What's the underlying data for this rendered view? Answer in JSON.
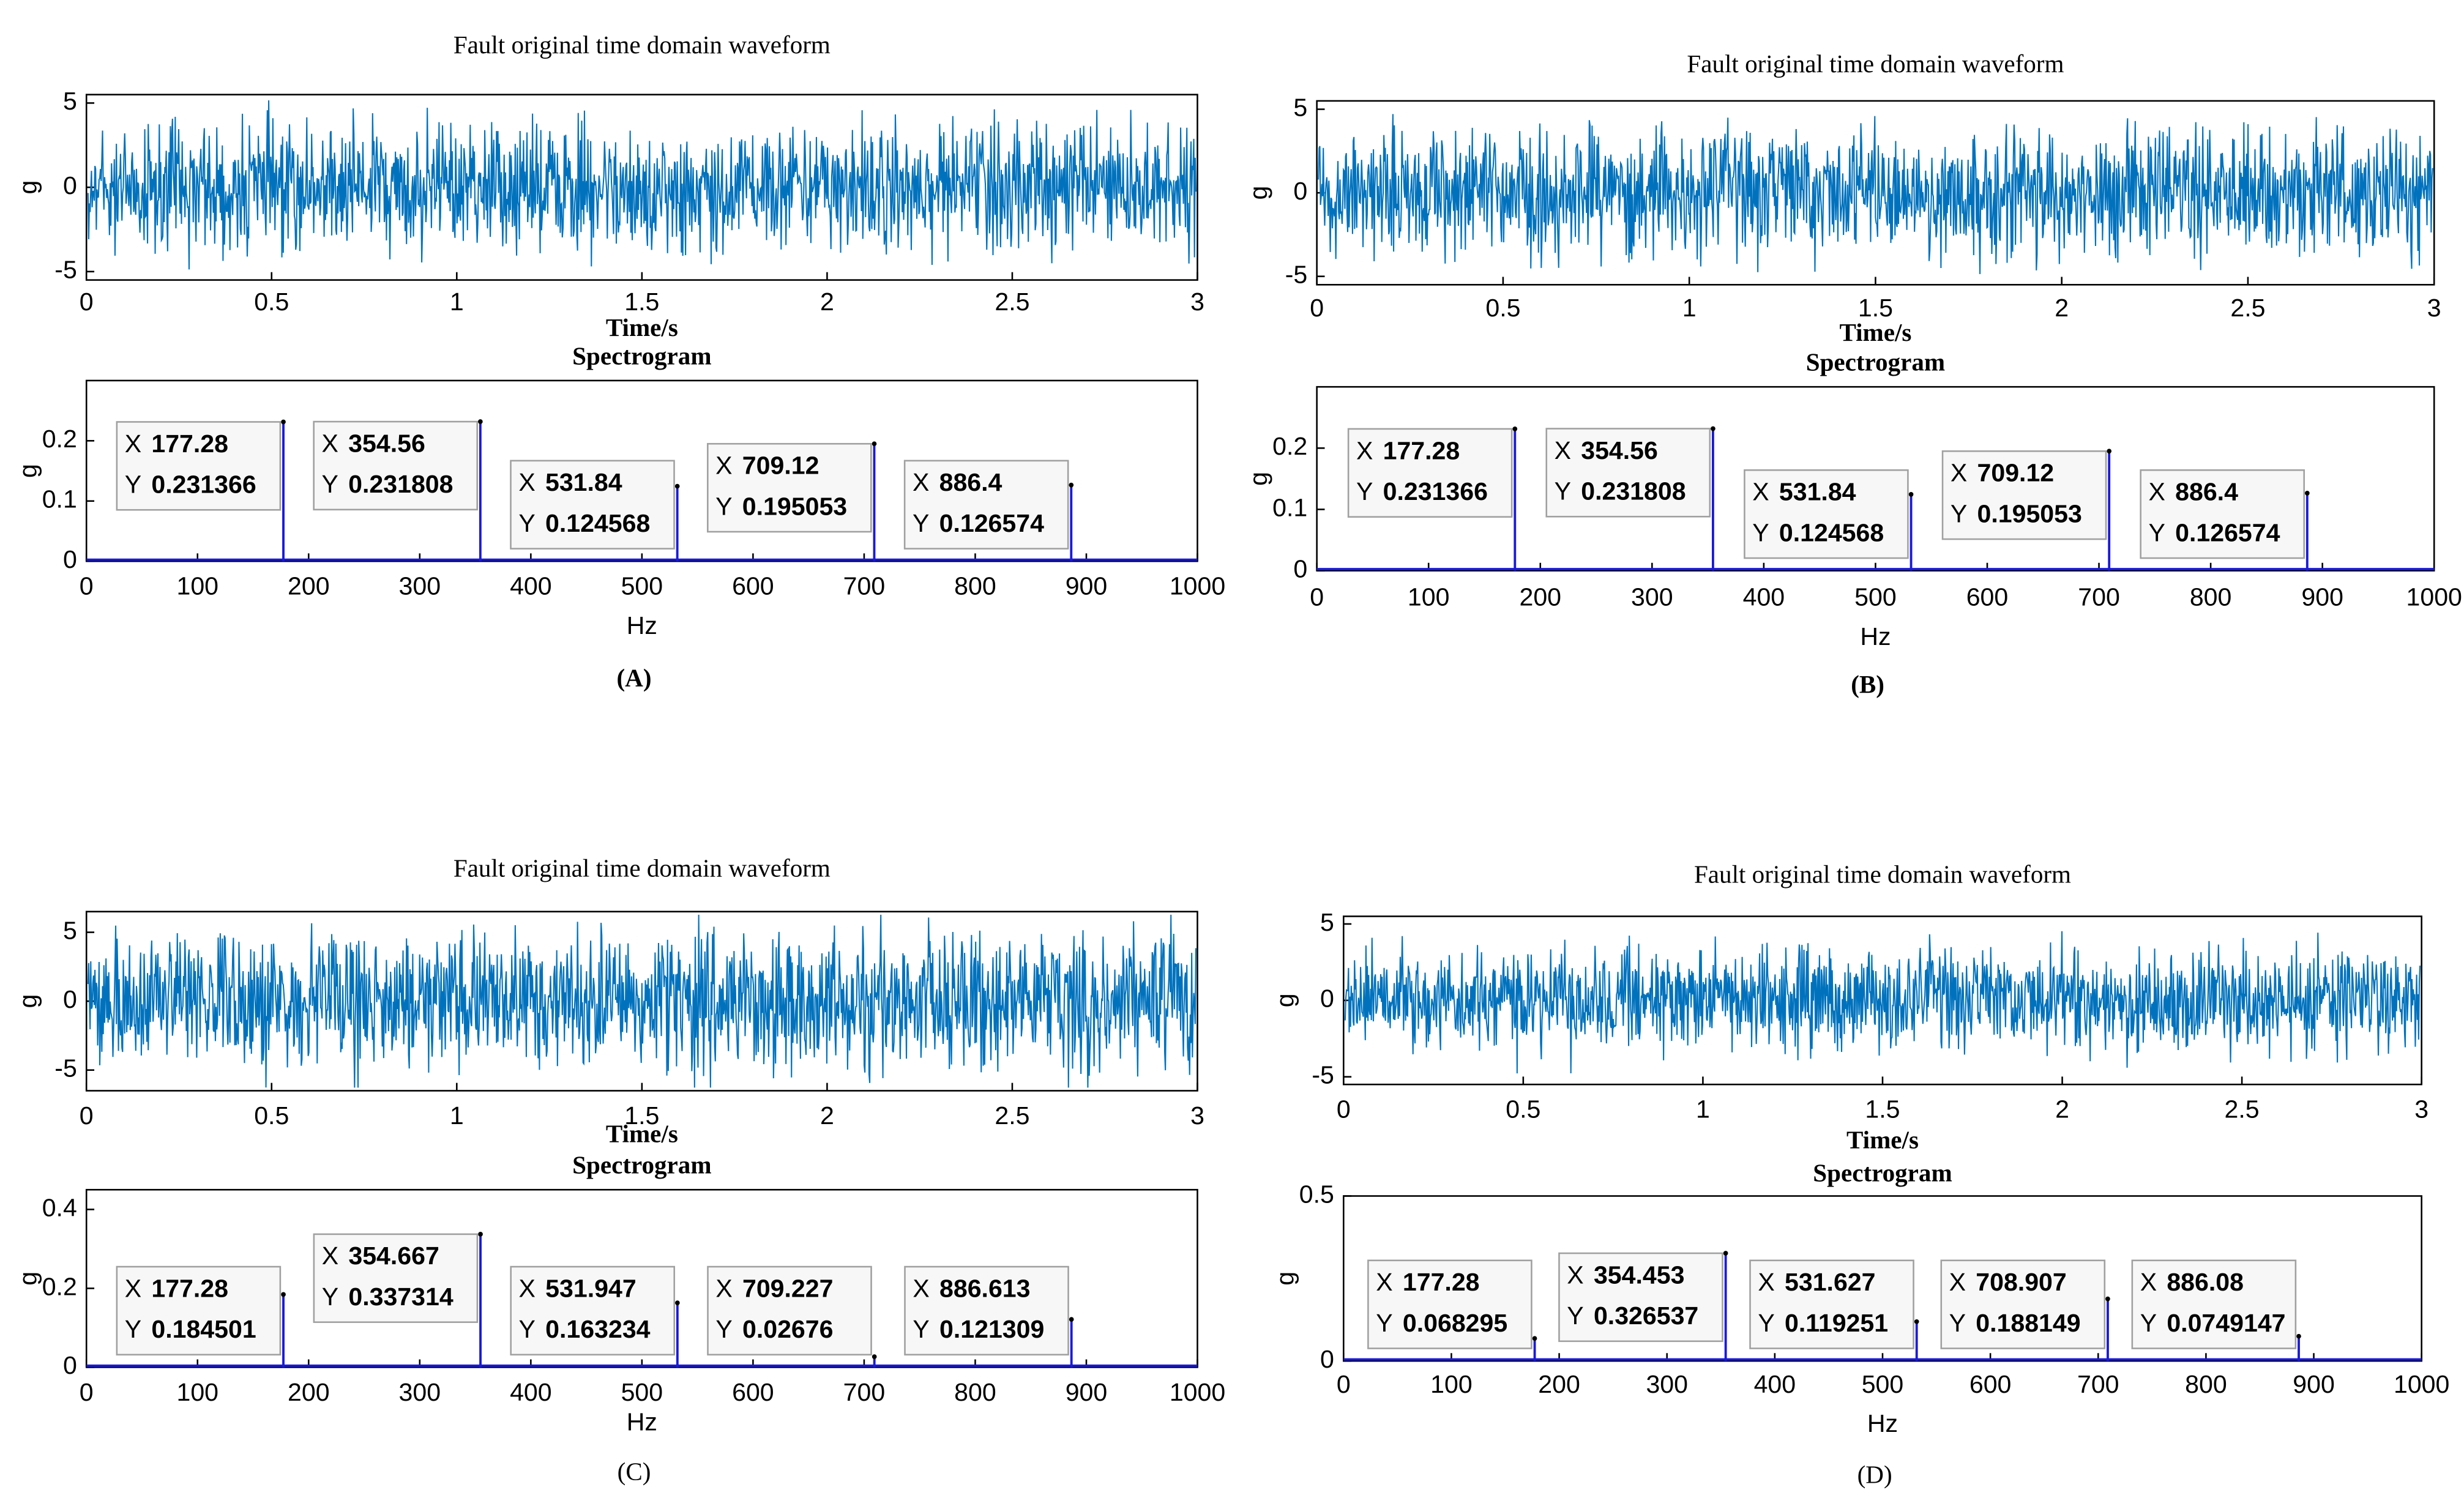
{
  "chart_data": [
    {
      "type": "line",
      "title": "Fault original time domain waveform",
      "xlabel": "Time/s",
      "ylabel": "g",
      "xlim": [
        0,
        3
      ],
      "xticks": [
        0,
        0.5,
        1,
        1.5,
        2,
        2.5,
        3
      ],
      "ylim": [
        -5.5,
        5.5
      ],
      "yticks": [
        -5,
        0,
        5
      ],
      "color": "#0072bd"
    },
    {
      "type": "spectrum",
      "title": "Spectrogram",
      "xlabel": "Hz",
      "ylabel": "g",
      "caption": "(A)",
      "xlim": [
        0,
        1000
      ],
      "xticks": [
        0,
        100,
        200,
        300,
        400,
        500,
        600,
        700,
        800,
        900,
        1000
      ],
      "ylim": [
        0,
        0.3
      ],
      "yticks": [
        0,
        0.1,
        0.2
      ],
      "color": "#1a1ad8",
      "tip_labels": [
        "X",
        "Y"
      ],
      "x": [
        177.28,
        354.56,
        531.84,
        709.12,
        886.4
      ],
      "values": [
        0.231366,
        0.231808,
        0.124568,
        0.195053,
        0.126574
      ]
    },
    {
      "type": "line",
      "title": "Fault original time domain waveform",
      "xlabel": "Time/s",
      "ylabel": "g",
      "xlim": [
        0,
        3
      ],
      "xticks": [
        0,
        0.5,
        1,
        1.5,
        2,
        2.5,
        3
      ],
      "ylim": [
        -5.5,
        5.5
      ],
      "yticks": [
        -5,
        0,
        5
      ],
      "color": "#0072bd"
    },
    {
      "type": "spectrum",
      "title": "Spectrogram",
      "xlabel": "Hz",
      "ylabel": "g",
      "caption": "(B)",
      "xlim": [
        0,
        1000
      ],
      "xticks": [
        0,
        100,
        200,
        300,
        400,
        500,
        600,
        700,
        800,
        900,
        1000
      ],
      "ylim": [
        0,
        0.3
      ],
      "yticks": [
        0,
        0.1,
        0.2
      ],
      "color": "#1a1ad8",
      "tip_labels": [
        "X",
        "Y"
      ],
      "x": [
        177.28,
        354.56,
        531.84,
        709.12,
        886.4
      ],
      "values": [
        0.231366,
        0.231808,
        0.124568,
        0.195053,
        0.126574
      ]
    },
    {
      "type": "line",
      "title": "Fault original time domain waveform",
      "xlabel": "Time/s",
      "ylabel": "g",
      "xlim": [
        0,
        3
      ],
      "xticks": [
        0,
        0.5,
        1,
        1.5,
        2,
        2.5,
        3
      ],
      "ylim": [
        -6.5,
        6.5
      ],
      "yticks": [
        -5,
        0,
        5
      ],
      "color": "#0072bd"
    },
    {
      "type": "spectrum",
      "title": "Spectrogram",
      "xlabel": "Hz",
      "ylabel": "g",
      "caption": "(C)",
      "xlim": [
        0,
        1000
      ],
      "xticks": [
        0,
        100,
        200,
        300,
        400,
        500,
        600,
        700,
        800,
        900,
        1000
      ],
      "ylim": [
        0,
        0.45
      ],
      "yticks": [
        0,
        0.2,
        0.4
      ],
      "color": "#1a1ad8",
      "tip_labels": [
        "X",
        "Y"
      ],
      "x": [
        177.28,
        354.667,
        531.947,
        709.227,
        886.613
      ],
      "values": [
        0.184501,
        0.337314,
        0.163234,
        0.02676,
        0.121309
      ]
    },
    {
      "type": "line",
      "title": "Fault original time domain waveform",
      "xlabel": "Time/s",
      "ylabel": "g",
      "xlim": [
        0,
        3
      ],
      "xticks": [
        0,
        0.5,
        1,
        1.5,
        2,
        2.5,
        3
      ],
      "ylim": [
        -5.5,
        5.5
      ],
      "yticks": [
        -5,
        0,
        5
      ],
      "color": "#0072bd"
    },
    {
      "type": "spectrum",
      "title": "Spectrogram",
      "xlabel": "Hz",
      "ylabel": "g",
      "caption": "(D)",
      "xlim": [
        0,
        1000
      ],
      "xticks": [
        0,
        100,
        200,
        300,
        400,
        500,
        600,
        700,
        800,
        900,
        1000
      ],
      "ylim": [
        0,
        0.5
      ],
      "yticks": [
        0,
        0.5
      ],
      "color": "#1a1ad8",
      "tip_labels": [
        "X",
        "Y"
      ],
      "x": [
        177.28,
        354.453,
        531.627,
        708.907,
        886.08
      ],
      "values": [
        0.068295,
        0.326537,
        0.119251,
        0.188149,
        0.0749147
      ]
    }
  ]
}
